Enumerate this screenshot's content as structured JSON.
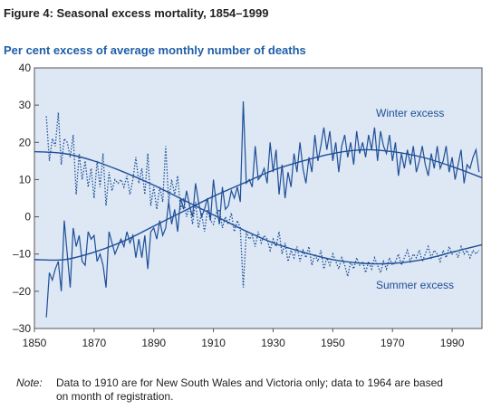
{
  "chart_data": {
    "type": "line",
    "title": "Figure 4: Seasonal excess mortality, 1854–1999",
    "subtitle": "Per cent excess of average monthly number of deaths",
    "xlim": [
      1850,
      2000
    ],
    "xticks": [
      1850,
      1870,
      1890,
      1910,
      1930,
      1950,
      1970,
      1990
    ],
    "ylim": [
      -30,
      40
    ],
    "yticks": [
      {
        "value": -30,
        "label": "–30"
      },
      {
        "value": -20,
        "label": "–20"
      },
      {
        "value": -10,
        "label": "–10"
      },
      0,
      10,
      20,
      30,
      40
    ],
    "series": [
      {
        "name": "Winter excess",
        "color": "#1f4e99",
        "style": "solid",
        "x": [
          1854,
          1855,
          1856,
          1857,
          1858,
          1859,
          1860,
          1861,
          1862,
          1863,
          1864,
          1865,
          1866,
          1867,
          1868,
          1869,
          1870,
          1871,
          1872,
          1873,
          1874,
          1875,
          1876,
          1877,
          1878,
          1879,
          1880,
          1881,
          1882,
          1883,
          1884,
          1885,
          1886,
          1887,
          1888,
          1889,
          1890,
          1891,
          1892,
          1893,
          1894,
          1895,
          1896,
          1897,
          1898,
          1899,
          1900,
          1901,
          1902,
          1903,
          1904,
          1905,
          1906,
          1907,
          1908,
          1909,
          1910,
          1911,
          1912,
          1913,
          1914,
          1915,
          1916,
          1917,
          1918,
          1919,
          1920,
          1921,
          1922,
          1923,
          1924,
          1925,
          1926,
          1927,
          1928,
          1929,
          1930,
          1931,
          1932,
          1933,
          1934,
          1935,
          1936,
          1937,
          1938,
          1939,
          1940,
          1941,
          1942,
          1943,
          1944,
          1945,
          1946,
          1947,
          1948,
          1949,
          1950,
          1951,
          1952,
          1953,
          1954,
          1955,
          1956,
          1957,
          1958,
          1959,
          1960,
          1961,
          1962,
          1963,
          1964,
          1965,
          1966,
          1967,
          1968,
          1969,
          1970,
          1971,
          1972,
          1973,
          1974,
          1975,
          1976,
          1977,
          1978,
          1979,
          1980,
          1981,
          1982,
          1983,
          1984,
          1985,
          1986,
          1987,
          1988,
          1989,
          1990,
          1991,
          1992,
          1993,
          1994,
          1995,
          1996,
          1997,
          1998,
          1999
        ],
        "values": [
          -27,
          -15,
          -17,
          -14,
          -12,
          -20,
          -1,
          -10,
          -19,
          -3,
          -8,
          -5,
          -12,
          -13,
          -4,
          -6,
          -5,
          -12,
          -10,
          -13,
          -19,
          -4,
          -7,
          -10,
          -8,
          -6,
          -8,
          -4,
          -7,
          -5,
          -11,
          -6,
          -11,
          -5,
          -14,
          -4,
          -3,
          -6,
          -1,
          -5,
          -3,
          4,
          -2,
          2,
          -4,
          5,
          2,
          7,
          3,
          0,
          9,
          4,
          0,
          2,
          5,
          -1,
          10,
          3,
          -2,
          8,
          2,
          3,
          7,
          5,
          8,
          4,
          31,
          9,
          10,
          8,
          19,
          10,
          11,
          13,
          9,
          20,
          12,
          18,
          6,
          14,
          5,
          12,
          8,
          17,
          12,
          20,
          13,
          9,
          16,
          12,
          22,
          15,
          19,
          24,
          18,
          23,
          15,
          20,
          12,
          19,
          22,
          16,
          20,
          14,
          23,
          17,
          20,
          16,
          22,
          18,
          24,
          15,
          23,
          19,
          17,
          22,
          15,
          20,
          11,
          17,
          13,
          18,
          14,
          19,
          12,
          15,
          19,
          14,
          11,
          17,
          13,
          19,
          13,
          15,
          19,
          12,
          16,
          10,
          14,
          18,
          9,
          14,
          13,
          16,
          18,
          12
        ]
      },
      {
        "name": "Summer excess",
        "color": "#1f4e99",
        "style": "dotted",
        "x": [
          1854,
          1855,
          1856,
          1857,
          1858,
          1859,
          1860,
          1861,
          1862,
          1863,
          1864,
          1865,
          1866,
          1867,
          1868,
          1869,
          1870,
          1871,
          1872,
          1873,
          1874,
          1875,
          1876,
          1877,
          1878,
          1879,
          1880,
          1881,
          1882,
          1883,
          1884,
          1885,
          1886,
          1887,
          1888,
          1889,
          1890,
          1891,
          1892,
          1893,
          1894,
          1895,
          1896,
          1897,
          1898,
          1899,
          1900,
          1901,
          1902,
          1903,
          1904,
          1905,
          1906,
          1907,
          1908,
          1909,
          1910,
          1911,
          1912,
          1913,
          1914,
          1915,
          1916,
          1917,
          1918,
          1919,
          1920,
          1921,
          1922,
          1923,
          1924,
          1925,
          1926,
          1927,
          1928,
          1929,
          1930,
          1931,
          1932,
          1933,
          1934,
          1935,
          1936,
          1937,
          1938,
          1939,
          1940,
          1941,
          1942,
          1943,
          1944,
          1945,
          1946,
          1947,
          1948,
          1949,
          1950,
          1951,
          1952,
          1953,
          1954,
          1955,
          1956,
          1957,
          1958,
          1959,
          1960,
          1961,
          1962,
          1963,
          1964,
          1965,
          1966,
          1967,
          1968,
          1969,
          1970,
          1971,
          1972,
          1973,
          1974,
          1975,
          1976,
          1977,
          1978,
          1979,
          1980,
          1981,
          1982,
          1983,
          1984,
          1985,
          1986,
          1987,
          1988,
          1989,
          1990,
          1991,
          1992,
          1993,
          1994,
          1995,
          1996,
          1997,
          1998,
          1999
        ],
        "values": [
          27,
          15,
          21,
          19,
          28,
          14,
          21,
          20,
          16,
          22,
          6,
          17,
          10,
          15,
          8,
          13,
          5,
          15,
          8,
          17,
          3,
          12,
          7,
          10,
          9,
          10,
          8,
          11,
          6,
          10,
          16,
          9,
          13,
          6,
          17,
          3,
          8,
          2,
          8,
          4,
          19,
          4,
          10,
          6,
          11,
          2,
          5,
          0,
          3,
          -2,
          4,
          -3,
          1,
          -4,
          2,
          -1,
          -2,
          1,
          2,
          -3,
          0,
          -2,
          1,
          -4,
          -1,
          -3,
          -19,
          -4,
          -6,
          -5,
          -8,
          -4,
          -7,
          -5,
          -6,
          -9,
          -6,
          -8,
          -4,
          -10,
          -7,
          -12,
          -9,
          -11,
          -8,
          -12,
          -9,
          -11,
          -8,
          -13,
          -10,
          -12,
          -9,
          -14,
          -11,
          -13,
          -10,
          -12,
          -14,
          -11,
          -13,
          -16,
          -12,
          -14,
          -11,
          -13,
          -12,
          -15,
          -12,
          -14,
          -11,
          -13,
          -15,
          -12,
          -14,
          -11,
          -13,
          -12,
          -10,
          -13,
          -11,
          -9,
          -12,
          -10,
          -11,
          -9,
          -12,
          -10,
          -8,
          -11,
          -9,
          -10,
          -12,
          -9,
          -11,
          -8,
          -10,
          -9,
          -11,
          -8,
          -10,
          -9,
          -11,
          -9,
          -10,
          -9
        ]
      },
      {
        "color": "#1f4e99",
        "style": "smooth",
        "x": [
          1850,
          1860,
          1870,
          1880,
          1890,
          1900,
          1910,
          1920,
          1930,
          1940,
          1950,
          1960,
          1970,
          1980,
          1990,
          2000
        ],
        "values": [
          -11.5,
          -11.5,
          -9.5,
          -6.5,
          -2.5,
          1.5,
          5.5,
          9,
          12.5,
          15,
          17,
          18,
          17.5,
          16,
          13.5,
          10.5
        ]
      },
      {
        "color": "#1f4e99",
        "style": "smooth",
        "x": [
          1850,
          1860,
          1870,
          1880,
          1890,
          1900,
          1910,
          1920,
          1930,
          1940,
          1950,
          1960,
          1970,
          1980,
          1990,
          2000
        ],
        "values": [
          17.5,
          17,
          15,
          12,
          8.5,
          4.5,
          0.5,
          -3.5,
          -7,
          -9.5,
          -11.5,
          -12.5,
          -12.5,
          -11.5,
          -9.5,
          -7.5
        ]
      }
    ],
    "note_label": "Note:",
    "note": [
      "Data to 1910 are for New South Wales and Victoria only; data to 1964 are based",
      "on month of registration."
    ]
  }
}
